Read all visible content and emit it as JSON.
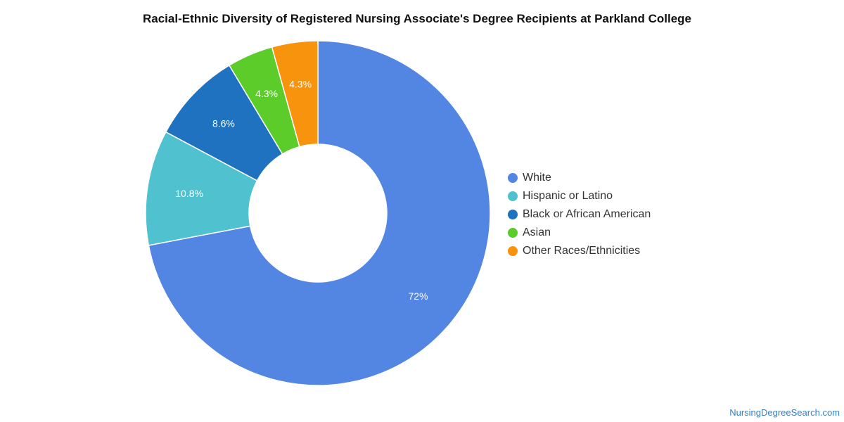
{
  "chart_data": {
    "type": "pie",
    "title": "Racial-Ethnic Diversity of Registered Nursing Associate's Degree Recipients at Parkland College",
    "categories": [
      "White",
      "Hispanic or Latino",
      "Black or African American",
      "Asian",
      "Other Races/Ethnicities"
    ],
    "values": [
      72,
      10.8,
      8.6,
      4.3,
      4.3
    ],
    "labels": [
      "72%",
      "10.8%",
      "8.6%",
      "4.3%",
      "4.3%"
    ],
    "colors": [
      "#5385e3",
      "#4fc1cf",
      "#1f72bf",
      "#5ccc2a",
      "#f7930d"
    ],
    "donut": true,
    "legend_position": "right"
  },
  "footer": {
    "source": "NursingDegreeSearch.com"
  }
}
